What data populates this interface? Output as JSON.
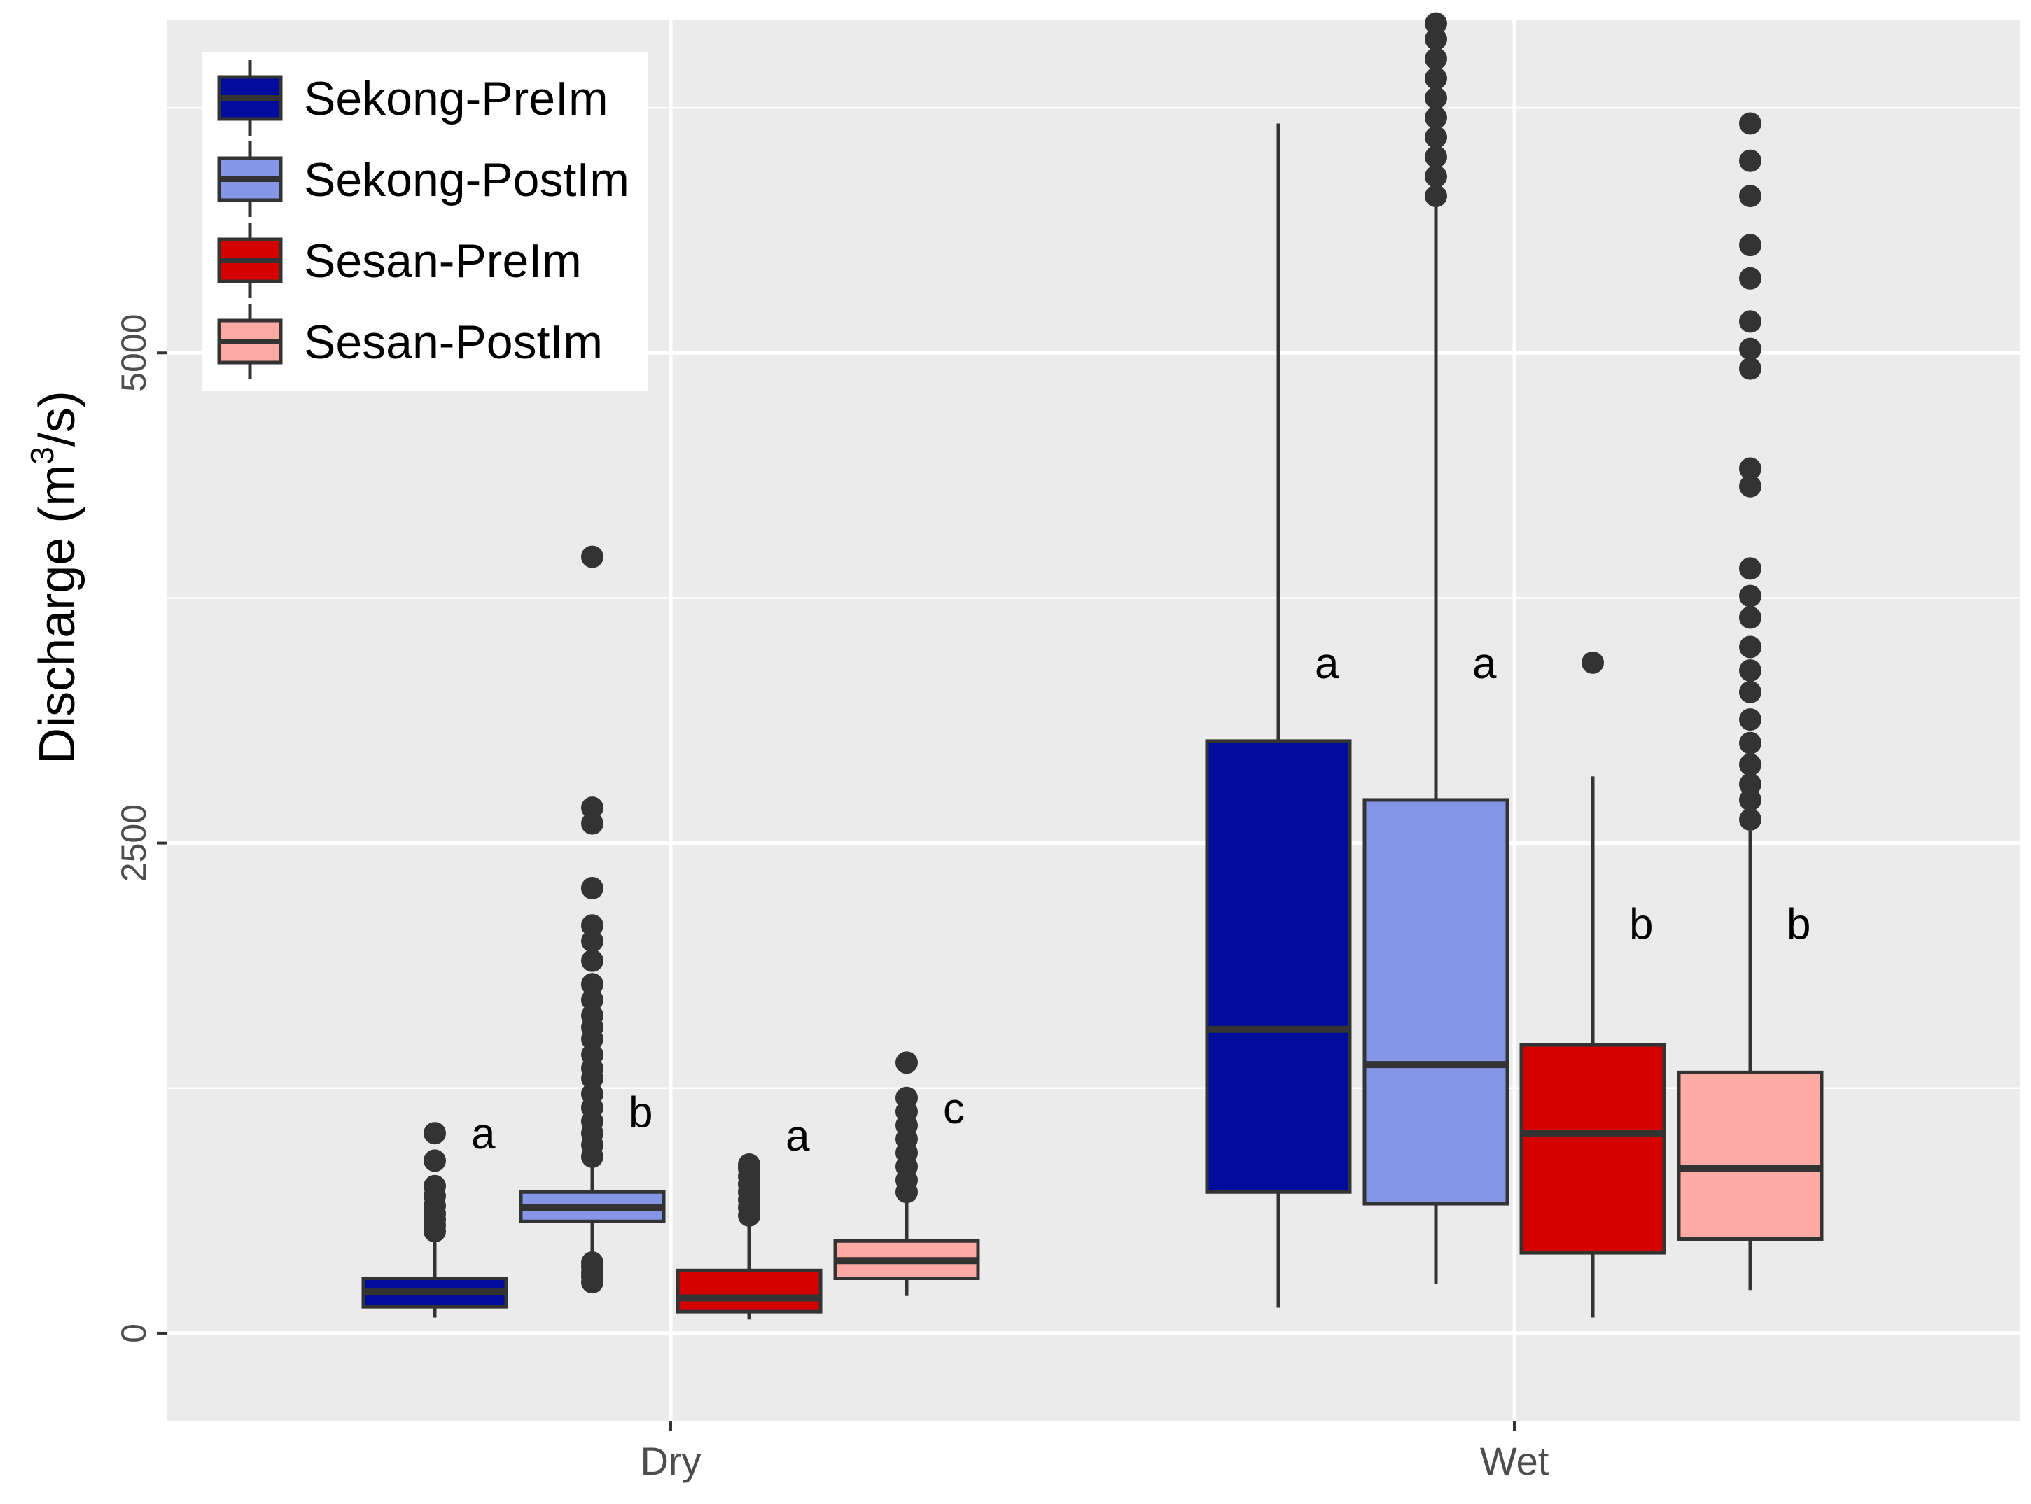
{
  "chart_data": {
    "type": "boxplot",
    "title": "",
    "xlabel": "",
    "ylabel": {
      "prefix": "Discharge (m",
      "superscript": "3",
      "suffix": "/s)"
    },
    "ylim": [
      -450,
      6700
    ],
    "yticks": [
      0,
      2500,
      5000
    ],
    "categories": [
      "Dry",
      "Wet"
    ],
    "legend": {
      "position": "top-left",
      "entries": [
        "Sekong-PreIm",
        "Sekong-PostIm",
        "Sesan-PreIm",
        "Sesan-PostIm"
      ]
    },
    "colors": {
      "panel": "#ebebeb",
      "grid": "#ffffff",
      "box_outline": "#333333",
      "Sekong-PreIm": "#000c9c",
      "Sekong-PostIm": "#8696e6",
      "Sesan-PreIm": "#d40000",
      "Sesan-PostIm": "#ffaaa2"
    },
    "series": [
      {
        "name": "Sekong-PreIm",
        "boxes": [
          {
            "category": "Dry",
            "whisker_low": 80,
            "q1": 135,
            "median": 210,
            "q3": 280,
            "whisker_high": 480,
            "outliers": [
              520,
              550,
              580,
              610,
              650,
              700,
              750,
              880,
              1020
            ],
            "letter": "a",
            "letter_value": 1020
          },
          {
            "category": "Wet",
            "whisker_low": 130,
            "q1": 720,
            "median": 1550,
            "q3": 3020,
            "whisker_high": 6170,
            "outliers": [],
            "letter": "a",
            "letter_value": 3420
          }
        ]
      },
      {
        "name": "Sekong-PostIm",
        "boxes": [
          {
            "category": "Dry",
            "whisker_low": 280,
            "q1": 570,
            "median": 640,
            "q3": 720,
            "whisker_high": 860,
            "outliers": [
              260,
              290,
              310,
              340,
              360,
              900,
              960,
              1020,
              1080,
              1150,
              1220,
              1300,
              1350,
              1420,
              1500,
              1560,
              1620,
              1700,
              1780,
              1900,
              2000,
              2080,
              2270,
              2600,
              2680,
              3960
            ],
            "letter": "b",
            "letter_value": 1130
          },
          {
            "category": "Wet",
            "whisker_low": 250,
            "q1": 660,
            "median": 1370,
            "q3": 2720,
            "whisker_high": 5750,
            "outliers": [
              5800,
              5900,
              6000,
              6100,
              6200,
              6300,
              6400,
              6500,
              6600,
              6680
            ],
            "letter": "a",
            "letter_value": 3420
          }
        ]
      },
      {
        "name": "Sesan-PreIm",
        "boxes": [
          {
            "category": "Dry",
            "whisker_low": 70,
            "q1": 110,
            "median": 180,
            "q3": 320,
            "whisker_high": 570,
            "outliers": [
              600,
              640,
              680,
              720,
              760,
              800,
              840,
              860
            ],
            "letter": "a",
            "letter_value": 1010
          },
          {
            "category": "Wet",
            "whisker_low": 80,
            "q1": 410,
            "median": 1020,
            "q3": 1470,
            "whisker_high": 2840,
            "outliers": [
              3420
            ],
            "letter": "b",
            "letter_value": 2090
          }
        ]
      },
      {
        "name": "Sesan-PostIm",
        "boxes": [
          {
            "category": "Dry",
            "whisker_low": 190,
            "q1": 280,
            "median": 370,
            "q3": 470,
            "whisker_high": 670,
            "outliers": [
              720,
              780,
              850,
              920,
              990,
              1060,
              1130,
              1200,
              1380
            ],
            "letter": "c",
            "letter_value": 1150
          },
          {
            "category": "Wet",
            "whisker_low": 220,
            "q1": 480,
            "median": 840,
            "q3": 1330,
            "whisker_high": 2560,
            "outliers": [
              2620,
              2720,
              2800,
              2900,
              3010,
              3130,
              3270,
              3380,
              3500,
              3650,
              3760,
              3900,
              4320,
              4410,
              4920,
              5020,
              5160,
              5380,
              5550,
              5800,
              5980,
              6170
            ],
            "letter": "b",
            "letter_value": 2090
          }
        ]
      }
    ]
  }
}
